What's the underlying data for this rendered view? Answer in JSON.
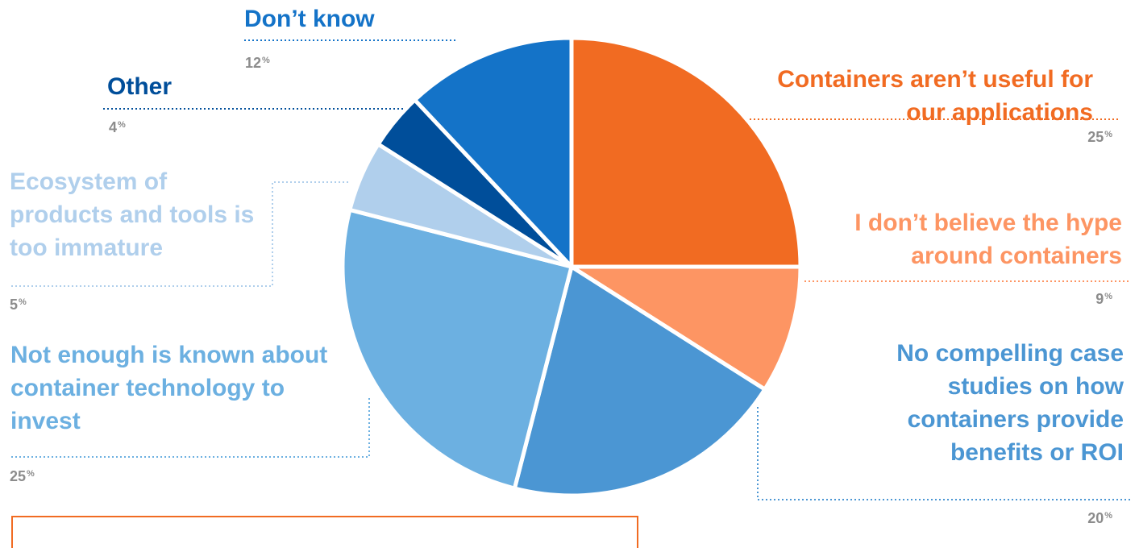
{
  "chart_data": {
    "type": "pie",
    "title": "",
    "slices": [
      {
        "label": "Containers aren’t useful for our applications",
        "value": 25,
        "display": "25",
        "color": "#f16b22"
      },
      {
        "label": "I don’t believe the hype around containers",
        "value": 9,
        "display": "9",
        "color": "#fd9563"
      },
      {
        "label": "No compelling case studies on how containers provide benefits or ROI",
        "value": 20,
        "display": "20",
        "color": "#4b96d3"
      },
      {
        "label": "Not enough is known about container technology to invest",
        "value": 25,
        "display": "25",
        "color": "#6cb0e1"
      },
      {
        "label": "Ecosystem of products and tools is too immature",
        "value": 5,
        "display": "5",
        "color": "#b0cfec"
      },
      {
        "label": "Other",
        "value": 4,
        "display": "4",
        "color": "#004e9a"
      },
      {
        "label": "Don’t know",
        "value": 12,
        "display": "12",
        "color": "#1473c8"
      }
    ],
    "percent_symbol": "%",
    "slice_border_color": "#ffffff"
  }
}
